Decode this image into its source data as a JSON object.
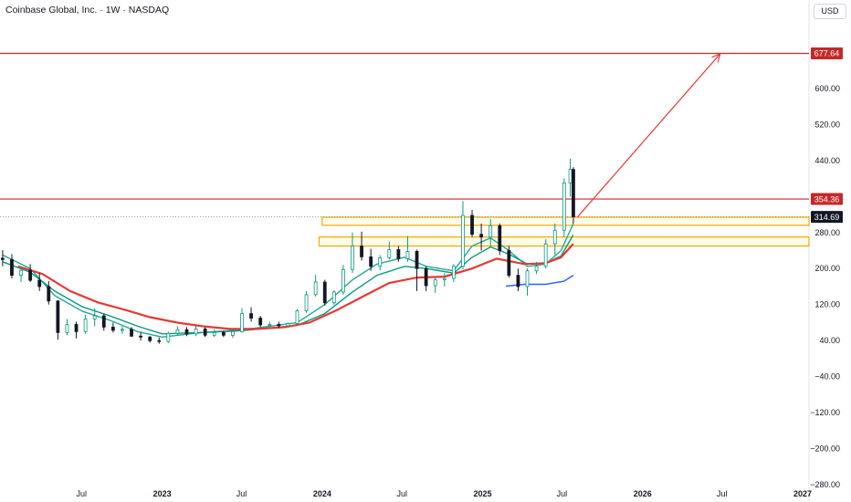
{
  "header": {
    "title": "Coinbase Global, Inc. · 1W · NASDAQ",
    "currency": "USD"
  },
  "colors": {
    "up": "#089981",
    "down": "#131722",
    "ema_fast": "#26a69a",
    "ema_slow": "#089981",
    "ma_red": "#e53935",
    "ma_blue": "#2962ff",
    "zone": "#f7a600",
    "resistance": "#c62828"
  },
  "chart_data": {
    "type": "candlestick",
    "symbol": "COIN",
    "interval": "1W",
    "x_range": [
      "2021-12-27",
      "2027-01-01"
    ],
    "ylim": [
      -300,
      780
    ],
    "y_ticks": [
      600,
      520,
      440,
      280,
      200,
      120,
      40,
      -40,
      -120,
      -200,
      -280
    ],
    "x_ticks": [
      {
        "label": "Jul",
        "date": "2022-07-01",
        "bold": false
      },
      {
        "label": "2023",
        "date": "2023-01-01",
        "bold": true
      },
      {
        "label": "Jul",
        "date": "2023-07-01",
        "bold": false
      },
      {
        "label": "2024",
        "date": "2024-01-01",
        "bold": true
      },
      {
        "label": "Jul",
        "date": "2024-07-01",
        "bold": false
      },
      {
        "label": "2025",
        "date": "2025-01-01",
        "bold": true
      },
      {
        "label": "Jul",
        "date": "2025-07-01",
        "bold": false
      },
      {
        "label": "2026",
        "date": "2026-01-01",
        "bold": true
      },
      {
        "label": "Jul",
        "date": "2026-07-01",
        "bold": false
      },
      {
        "label": "2027",
        "date": "2027-01-01",
        "bold": true
      }
    ],
    "price_lines": [
      {
        "value": 677.64,
        "label": "677.64",
        "style": "solid"
      },
      {
        "value": 354.36,
        "label": "354.36",
        "style": "solid"
      },
      {
        "value": 314.69,
        "label": "314.69",
        "style": "dotted",
        "last": true
      }
    ],
    "zones": [
      {
        "from": "2024-01-01",
        "low": 296,
        "high": 314
      },
      {
        "from": "2023-12-25",
        "low": 250,
        "high": 270
      }
    ],
    "arrow": {
      "from": {
        "date": "2025-08-05",
        "value": 314
      },
      "to": {
        "date": "2026-06-27",
        "value": 677
      }
    },
    "candles": [
      [
        "2022-01-02",
        223,
        241,
        205,
        220
      ],
      [
        "2022-01-23",
        220,
        232,
        178,
        185
      ],
      [
        "2022-02-13",
        185,
        205,
        170,
        196
      ],
      [
        "2022-03-06",
        196,
        210,
        170,
        174
      ],
      [
        "2022-03-27",
        174,
        190,
        150,
        160
      ],
      [
        "2022-04-17",
        160,
        172,
        120,
        128
      ],
      [
        "2022-05-08",
        128,
        130,
        42,
        58
      ],
      [
        "2022-05-29",
        58,
        88,
        52,
        76
      ],
      [
        "2022-06-19",
        76,
        82,
        45,
        60
      ],
      [
        "2022-07-10",
        60,
        98,
        55,
        88
      ],
      [
        "2022-07-31",
        88,
        112,
        72,
        95
      ],
      [
        "2022-08-21",
        95,
        100,
        62,
        70
      ],
      [
        "2022-09-11",
        70,
        80,
        58,
        63
      ],
      [
        "2022-10-02",
        63,
        72,
        55,
        65
      ],
      [
        "2022-10-23",
        65,
        70,
        48,
        50
      ],
      [
        "2022-11-13",
        50,
        58,
        40,
        48
      ],
      [
        "2022-12-04",
        48,
        50,
        36,
        40
      ],
      [
        "2022-12-25",
        40,
        47,
        33,
        38
      ],
      [
        "2023-01-15",
        38,
        60,
        35,
        56
      ],
      [
        "2023-02-05",
        56,
        72,
        52,
        64
      ],
      [
        "2023-02-26",
        64,
        70,
        50,
        55
      ],
      [
        "2023-03-19",
        55,
        72,
        50,
        66
      ],
      [
        "2023-04-09",
        66,
        70,
        48,
        52
      ],
      [
        "2023-04-30",
        52,
        65,
        48,
        58
      ],
      [
        "2023-05-21",
        58,
        62,
        48,
        52
      ],
      [
        "2023-06-11",
        52,
        62,
        46,
        60
      ],
      [
        "2023-07-02",
        60,
        112,
        58,
        100
      ],
      [
        "2023-07-23",
        100,
        114,
        82,
        90
      ],
      [
        "2023-08-13",
        90,
        95,
        70,
        75
      ],
      [
        "2023-09-03",
        75,
        82,
        70,
        76
      ],
      [
        "2023-09-24",
        76,
        82,
        68,
        73
      ],
      [
        "2023-10-15",
        73,
        80,
        70,
        78
      ],
      [
        "2023-11-05",
        78,
        110,
        75,
        106
      ],
      [
        "2023-11-26",
        106,
        150,
        102,
        142
      ],
      [
        "2023-12-17",
        142,
        186,
        138,
        170
      ],
      [
        "2024-01-07",
        170,
        175,
        118,
        124
      ],
      [
        "2024-01-28",
        124,
        152,
        120,
        148
      ],
      [
        "2024-02-18",
        148,
        208,
        142,
        198
      ],
      [
        "2024-03-10",
        198,
        280,
        190,
        250
      ],
      [
        "2024-03-31",
        250,
        282,
        218,
        226
      ],
      [
        "2024-04-21",
        226,
        244,
        195,
        205
      ],
      [
        "2024-05-12",
        205,
        230,
        196,
        224
      ],
      [
        "2024-06-02",
        224,
        260,
        220,
        242
      ],
      [
        "2024-06-23",
        242,
        250,
        215,
        222
      ],
      [
        "2024-07-14",
        222,
        272,
        215,
        238
      ],
      [
        "2024-08-04",
        238,
        242,
        150,
        200
      ],
      [
        "2024-08-25",
        200,
        205,
        150,
        162
      ],
      [
        "2024-09-15",
        162,
        180,
        146,
        175
      ],
      [
        "2024-10-06",
        175,
        190,
        160,
        178
      ],
      [
        "2024-10-27",
        178,
        210,
        170,
        205
      ],
      [
        "2024-11-17",
        205,
        350,
        198,
        318
      ],
      [
        "2024-12-08",
        318,
        330,
        270,
        276
      ],
      [
        "2024-12-29",
        276,
        300,
        240,
        270
      ],
      [
        "2025-01-19",
        270,
        310,
        250,
        295
      ],
      [
        "2025-02-09",
        295,
        300,
        230,
        240
      ],
      [
        "2025-03-02",
        240,
        250,
        180,
        185
      ],
      [
        "2025-03-23",
        185,
        200,
        150,
        160
      ],
      [
        "2025-04-13",
        160,
        200,
        140,
        195
      ],
      [
        "2025-05-04",
        195,
        215,
        188,
        205
      ],
      [
        "2025-05-25",
        205,
        265,
        200,
        255
      ],
      [
        "2025-06-15",
        255,
        300,
        230,
        285
      ],
      [
        "2025-07-06",
        285,
        400,
        270,
        390
      ],
      [
        "2025-07-20",
        390,
        444,
        360,
        420
      ],
      [
        "2025-07-27",
        420,
        425,
        300,
        315
      ]
    ],
    "series": [
      {
        "name": "",
        "color": "#26a69a",
        "values": [
          [
            "2022-01-02",
            230
          ],
          [
            "2022-03-06",
            200
          ],
          [
            "2022-05-01",
            140
          ],
          [
            "2022-07-03",
            105
          ],
          [
            "2022-09-04",
            85
          ],
          [
            "2022-11-06",
            60
          ],
          [
            "2023-01-01",
            48
          ],
          [
            "2023-04-02",
            58
          ],
          [
            "2023-07-02",
            64
          ],
          [
            "2023-09-03",
            72
          ],
          [
            "2023-11-05",
            80
          ],
          [
            "2024-01-07",
            120
          ],
          [
            "2024-03-10",
            175
          ],
          [
            "2024-05-05",
            210
          ],
          [
            "2024-07-07",
            225
          ],
          [
            "2024-08-25",
            205
          ],
          [
            "2024-10-27",
            195
          ],
          [
            "2024-12-08",
            250
          ],
          [
            "2025-01-19",
            268
          ],
          [
            "2025-03-02",
            240
          ],
          [
            "2025-04-13",
            205
          ],
          [
            "2025-05-25",
            210
          ],
          [
            "2025-06-29",
            240
          ],
          [
            "2025-07-27",
            300
          ]
        ]
      },
      {
        "name": "",
        "color": "#089981",
        "values": [
          [
            "2022-01-02",
            215
          ],
          [
            "2022-03-06",
            192
          ],
          [
            "2022-05-01",
            150
          ],
          [
            "2022-07-03",
            115
          ],
          [
            "2022-09-04",
            95
          ],
          [
            "2022-11-06",
            72
          ],
          [
            "2023-01-01",
            55
          ],
          [
            "2023-04-02",
            58
          ],
          [
            "2023-07-02",
            62
          ],
          [
            "2023-09-03",
            68
          ],
          [
            "2023-11-05",
            74
          ],
          [
            "2024-01-07",
            100
          ],
          [
            "2024-03-10",
            148
          ],
          [
            "2024-05-05",
            185
          ],
          [
            "2024-07-07",
            205
          ],
          [
            "2024-08-25",
            200
          ],
          [
            "2024-10-27",
            190
          ],
          [
            "2024-12-08",
            225
          ],
          [
            "2025-01-19",
            248
          ],
          [
            "2025-03-02",
            232
          ],
          [
            "2025-04-13",
            210
          ],
          [
            "2025-05-25",
            212
          ],
          [
            "2025-06-29",
            228
          ],
          [
            "2025-07-27",
            275
          ]
        ]
      },
      {
        "name": "",
        "color": "#e53935",
        "values": [
          [
            "2022-02-06",
            205
          ],
          [
            "2022-04-03",
            188
          ],
          [
            "2022-06-05",
            150
          ],
          [
            "2022-08-07",
            125
          ],
          [
            "2022-10-09",
            108
          ],
          [
            "2022-12-04",
            92
          ],
          [
            "2023-02-05",
            80
          ],
          [
            "2023-04-02",
            72
          ],
          [
            "2023-06-04",
            66
          ],
          [
            "2023-08-06",
            66
          ],
          [
            "2023-10-08",
            70
          ],
          [
            "2023-12-03",
            80
          ],
          [
            "2024-02-04",
            108
          ],
          [
            "2024-04-07",
            140
          ],
          [
            "2024-06-02",
            168
          ],
          [
            "2024-08-04",
            180
          ],
          [
            "2024-10-06",
            182
          ],
          [
            "2024-12-08",
            200
          ],
          [
            "2025-02-02",
            222
          ],
          [
            "2025-04-06",
            210
          ],
          [
            "2025-05-25",
            212
          ],
          [
            "2025-06-29",
            225
          ],
          [
            "2025-07-27",
            255
          ]
        ]
      },
      {
        "name": "",
        "color": "#2962ff",
        "values": [
          [
            "2025-02-23",
            161
          ],
          [
            "2025-04-06",
            165
          ],
          [
            "2025-05-25",
            165
          ],
          [
            "2025-07-06",
            172
          ],
          [
            "2025-07-27",
            185
          ]
        ]
      }
    ]
  }
}
